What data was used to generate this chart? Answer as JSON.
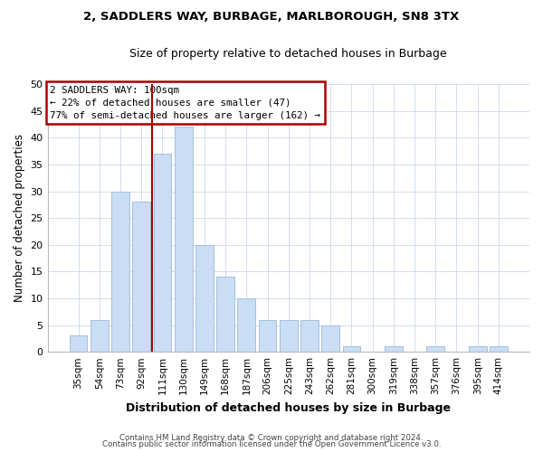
{
  "title": "2, SADDLERS WAY, BURBAGE, MARLBOROUGH, SN8 3TX",
  "subtitle": "Size of property relative to detached houses in Burbage",
  "xlabel": "Distribution of detached houses by size in Burbage",
  "ylabel": "Number of detached properties",
  "bar_labels": [
    "35sqm",
    "54sqm",
    "73sqm",
    "92sqm",
    "111sqm",
    "130sqm",
    "149sqm",
    "168sqm",
    "187sqm",
    "206sqm",
    "225sqm",
    "243sqm",
    "262sqm",
    "281sqm",
    "300sqm",
    "319sqm",
    "338sqm",
    "357sqm",
    "376sqm",
    "395sqm",
    "414sqm"
  ],
  "bar_values": [
    3,
    6,
    30,
    28,
    37,
    42,
    20,
    14,
    10,
    6,
    6,
    6,
    5,
    1,
    0,
    1,
    0,
    1,
    0,
    1,
    1
  ],
  "bar_color": "#c9ddf5",
  "bar_edge_color": "#a8c0e0",
  "ylim": [
    0,
    50
  ],
  "yticks": [
    0,
    5,
    10,
    15,
    20,
    25,
    30,
    35,
    40,
    45,
    50
  ],
  "marker_label_line1": "2 SADDLERS WAY: 100sqm",
  "marker_label_line2": "← 22% of detached houses are smaller (47)",
  "marker_label_line3": "77% of semi-detached houses are larger (162) →",
  "marker_color": "#aa0000",
  "annotation_box_color": "#ffffff",
  "annotation_box_edge": "#aa0000",
  "footer_line1": "Contains HM Land Registry data © Crown copyright and database right 2024.",
  "footer_line2": "Contains public sector information licensed under the Open Government Licence v3.0.",
  "background_color": "#ffffff",
  "grid_color": "#ccd8e8"
}
